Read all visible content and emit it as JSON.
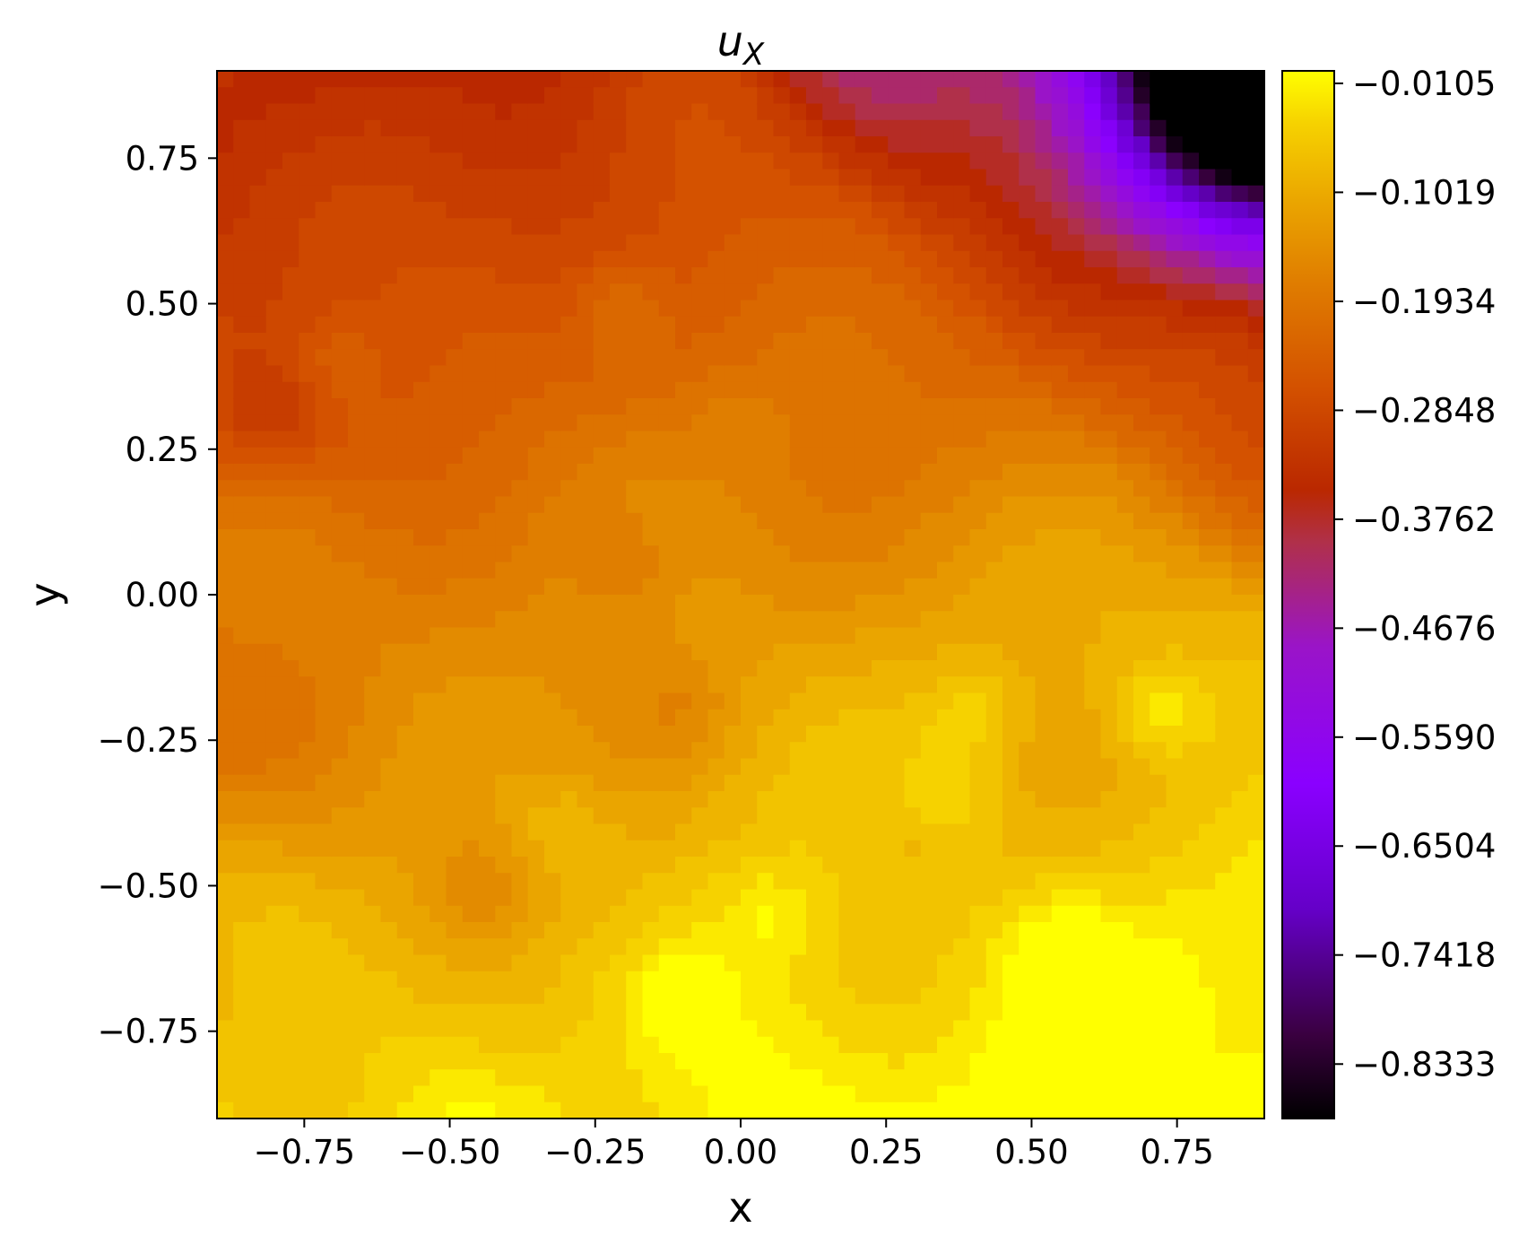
{
  "chart_data": {
    "type": "heatmap",
    "subtype": "filled-contour",
    "title_main": "u",
    "title_sub": "X",
    "xlabel": "x",
    "ylabel": "y",
    "xlim": [
      -0.9,
      0.9
    ],
    "ylim": [
      -0.9,
      0.9
    ],
    "xticks": [
      -0.75,
      -0.5,
      -0.25,
      0.0,
      0.25,
      0.5,
      0.75
    ],
    "xtick_labels": [
      "−0.75",
      "−0.50",
      "−0.25",
      "0.00",
      "0.25",
      "0.50",
      "0.75"
    ],
    "yticks": [
      -0.75,
      -0.5,
      -0.25,
      0.0,
      0.25,
      0.5,
      0.75
    ],
    "ytick_labels": [
      "−0.75",
      "−0.50",
      "−0.25",
      "0.00",
      "0.25",
      "0.50",
      "0.75"
    ],
    "colormap": "gnuplot",
    "colorbar": {
      "range": [
        -0.879,
        0.0
      ],
      "ticks": [
        -0.0105,
        -0.1019,
        -0.1934,
        -0.2848,
        -0.3762,
        -0.4676,
        -0.559,
        -0.6504,
        -0.7418,
        -0.8333
      ],
      "tick_labels": [
        "−0.0105",
        "−0.1019",
        "−0.1934",
        "−0.2848",
        "−0.3762",
        "−0.4676",
        "−0.5590",
        "−0.6504",
        "−0.7418",
        "−0.8333"
      ],
      "stops": [
        {
          "v": 0.0,
          "color": "#000000"
        },
        {
          "v": 0.08,
          "color": "#3a0040"
        },
        {
          "v": 0.2,
          "color": "#6500c8"
        },
        {
          "v": 0.32,
          "color": "#8a00ff"
        },
        {
          "v": 0.45,
          "color": "#9a14c8"
        },
        {
          "v": 0.55,
          "color": "#b0304a"
        },
        {
          "v": 0.6,
          "color": "#ba2800"
        },
        {
          "v": 0.7,
          "color": "#d45200"
        },
        {
          "v": 0.8,
          "color": "#e07e00"
        },
        {
          "v": 0.88,
          "color": "#eba800"
        },
        {
          "v": 0.95,
          "color": "#f6d200"
        },
        {
          "v": 1.0,
          "color": "#ffff00"
        }
      ]
    }
  }
}
